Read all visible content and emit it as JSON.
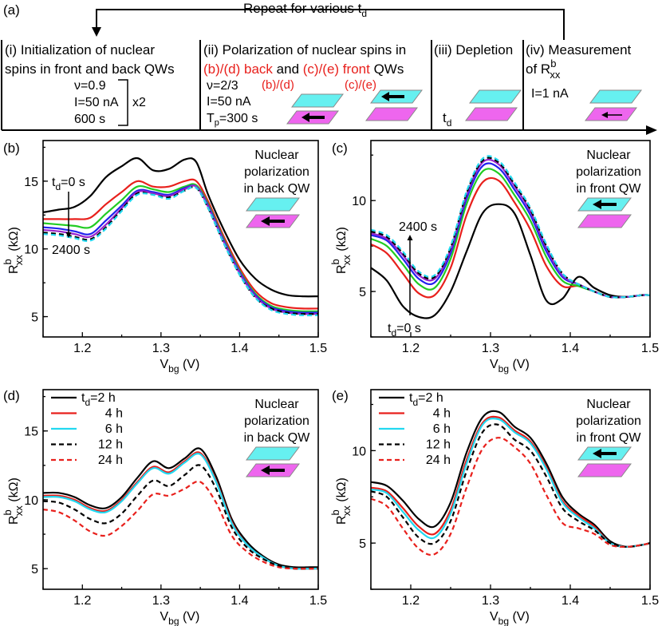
{
  "figure": {
    "panel_a": {
      "label": "(a)",
      "repeat_text": "Repeat for various t",
      "repeat_sub": "d",
      "step1_line1": "(i) Initialization of nuclear",
      "step1_line2": "spins in front and back QWs",
      "step1_nu": "ν=0.9",
      "step1_I": "I=50 nA",
      "step1_x2": "x2",
      "step1_time": "600 s",
      "step2_line1": "(ii) Polarization of nuclear spins in",
      "step2_bd": "(b)/(d) back",
      "step2_and": "and",
      "step2_ce": "(c)/(e) front",
      "step2_qws": "QWs",
      "step2_nu": "ν=2/3",
      "step2_I": "I=50 nA",
      "step2_Tp": "T",
      "step2_Tp_sub": "p",
      "step2_Tp_val": "=300 s",
      "step2_tag_bd": "(b)/(d)",
      "step2_tag_ce": "(c)/(e)",
      "step3_label": "(iii) Depletion",
      "step3_td": "t",
      "step3_td_sub": "d",
      "step4_line1": "(iv) Measurement",
      "step4_line2": "of R",
      "step4_sup": "b",
      "step4_sub": "xx",
      "step4_I": "I=1 nA"
    },
    "colors": {
      "cyan_layer": "#66f0f0",
      "magenta_layer": "#ee66ee",
      "red": "#e8201c",
      "green": "#22cc22",
      "blue": "#2222ee",
      "purple": "#9922cc",
      "cyan": "#22d8f0",
      "black": "#000000"
    }
  },
  "chart_data": [
    {
      "panel": "(b)",
      "type": "line",
      "xlabel": "V",
      "xlabel_sub": "bg",
      "xlabel_unit": " (V)",
      "ylabel": "R",
      "ylabel_sup": "b",
      "ylabel_sub": "xx",
      "ylabel_unit": " (kΩ)",
      "xlim": [
        1.15,
        1.5
      ],
      "ylim": [
        3.5,
        18.0
      ],
      "xticks": [
        "1.2",
        "1.3",
        "1.4",
        "1.5"
      ],
      "xtick_values": [
        1.2,
        1.3,
        1.4,
        1.5
      ],
      "yticks": [
        "5",
        "10",
        "15"
      ],
      "ytick_values": [
        5,
        10,
        15
      ],
      "annotation_line1": "Nuclear",
      "annotation_line2": "polarization",
      "annotation_line3": "in back QW",
      "label_top": "t",
      "label_top_sub": "d",
      "label_top_val": "=0 s",
      "label_bottom": "2400 s",
      "arrow_direction": "front-to-back (cyan top, magenta bottom with arrow)",
      "x": [
        1.15,
        1.17,
        1.19,
        1.21,
        1.23,
        1.25,
        1.27,
        1.29,
        1.31,
        1.33,
        1.345,
        1.36,
        1.38,
        1.4,
        1.42,
        1.44,
        1.46,
        1.48,
        1.5
      ],
      "series": [
        {
          "name": "0 s",
          "color": "#000000",
          "dash": false,
          "values": [
            12.7,
            12.9,
            13.1,
            13.9,
            15.3,
            16.1,
            16.7,
            15.8,
            15.9,
            16.6,
            16.4,
            14.0,
            11.4,
            9.2,
            7.8,
            7.0,
            6.6,
            6.5,
            6.5
          ]
        },
        {
          "name": "red",
          "color": "#e8201c",
          "dash": false,
          "values": [
            12.2,
            12.2,
            12.2,
            12.3,
            13.3,
            14.2,
            15.0,
            14.6,
            14.6,
            15.0,
            15.0,
            13.5,
            10.9,
            8.6,
            6.9,
            6.0,
            5.7,
            5.6,
            5.6
          ]
        },
        {
          "name": "green",
          "color": "#22cc22",
          "dash": false,
          "values": [
            11.9,
            11.8,
            11.7,
            11.6,
            12.6,
            13.6,
            14.6,
            14.4,
            14.2,
            14.6,
            14.7,
            13.3,
            10.7,
            8.4,
            6.7,
            5.8,
            5.5,
            5.4,
            5.4
          ]
        },
        {
          "name": "blue",
          "color": "#2222ee",
          "dash": false,
          "values": [
            11.6,
            11.5,
            11.3,
            11.1,
            12.1,
            13.2,
            14.3,
            14.2,
            14.0,
            14.5,
            14.6,
            13.2,
            10.6,
            8.3,
            6.6,
            5.7,
            5.4,
            5.3,
            5.3
          ]
        },
        {
          "name": "purple",
          "color": "#9922cc",
          "dash": false,
          "values": [
            11.4,
            11.3,
            11.1,
            10.9,
            11.8,
            13.0,
            14.2,
            14.1,
            13.9,
            14.4,
            14.6,
            13.1,
            10.5,
            8.2,
            6.5,
            5.6,
            5.3,
            5.2,
            5.2
          ]
        },
        {
          "name": "black-dash",
          "color": "#000000",
          "dash": true,
          "values": [
            11.2,
            11.1,
            10.9,
            10.7,
            11.6,
            12.9,
            14.1,
            14.0,
            13.8,
            14.3,
            14.5,
            13.0,
            10.4,
            8.1,
            6.4,
            5.6,
            5.3,
            5.2,
            5.2
          ]
        },
        {
          "name": "2400 s",
          "color": "#22d8f0",
          "dash": true,
          "values": [
            11.1,
            11.0,
            10.8,
            10.6,
            11.5,
            12.8,
            14.0,
            14.0,
            13.7,
            14.3,
            14.5,
            13.0,
            10.4,
            8.1,
            6.4,
            5.5,
            5.2,
            5.1,
            5.1
          ]
        }
      ]
    },
    {
      "panel": "(c)",
      "type": "line",
      "xlabel": "V",
      "xlabel_sub": "bg",
      "xlabel_unit": " (V)",
      "ylabel": "R",
      "ylabel_sup": "b",
      "ylabel_sub": "xx",
      "ylabel_unit": " (kΩ)",
      "xlim": [
        1.15,
        1.5
      ],
      "ylim": [
        2.5,
        13.3
      ],
      "xticks": [
        "1.2",
        "1.3",
        "1.4",
        "1.5"
      ],
      "xtick_values": [
        1.2,
        1.3,
        1.4,
        1.5
      ],
      "yticks": [
        "5",
        "10"
      ],
      "ytick_values": [
        5,
        10
      ],
      "annotation_line1": "Nuclear",
      "annotation_line2": "polarization",
      "annotation_line3": "in front QW",
      "label_top": "2400 s",
      "label_bottom": "t",
      "label_bottom_sub": "d",
      "label_bottom_val": "=0 s",
      "x": [
        1.15,
        1.17,
        1.19,
        1.21,
        1.23,
        1.25,
        1.27,
        1.29,
        1.31,
        1.33,
        1.35,
        1.37,
        1.39,
        1.41,
        1.43,
        1.45,
        1.47,
        1.49,
        1.5
      ],
      "series": [
        {
          "name": "0 s",
          "color": "#000000",
          "dash": false,
          "values": [
            6.3,
            5.6,
            4.2,
            3.6,
            3.7,
            5.0,
            7.2,
            9.3,
            9.8,
            9.3,
            7.0,
            4.5,
            4.6,
            5.8,
            5.2,
            4.8,
            4.7,
            4.8,
            4.8
          ]
        },
        {
          "name": "red",
          "color": "#e8201c",
          "dash": false,
          "values": [
            7.6,
            7.1,
            6.0,
            4.9,
            4.8,
            6.3,
            9.2,
            11.0,
            11.1,
            9.9,
            8.4,
            6.4,
            5.3,
            5.3,
            5.0,
            4.7,
            4.7,
            4.8,
            4.8
          ]
        },
        {
          "name": "green",
          "color": "#22cc22",
          "dash": false,
          "values": [
            7.9,
            7.5,
            6.5,
            5.4,
            5.2,
            6.8,
            9.8,
            11.6,
            11.5,
            10.3,
            8.9,
            6.9,
            5.6,
            5.3,
            5.0,
            4.7,
            4.7,
            4.8,
            4.8
          ]
        },
        {
          "name": "blue",
          "color": "#2222ee",
          "dash": false,
          "values": [
            8.1,
            7.8,
            6.8,
            5.7,
            5.5,
            7.1,
            10.1,
            11.9,
            11.8,
            10.6,
            9.2,
            7.2,
            5.8,
            5.4,
            5.0,
            4.7,
            4.7,
            4.8,
            4.8
          ]
        },
        {
          "name": "purple",
          "color": "#9922cc",
          "dash": false,
          "values": [
            8.2,
            7.9,
            7.0,
            5.9,
            5.7,
            7.3,
            10.3,
            12.1,
            12.0,
            10.8,
            9.4,
            7.4,
            5.9,
            5.4,
            5.0,
            4.7,
            4.7,
            4.8,
            4.8
          ]
        },
        {
          "name": "black-dash",
          "color": "#000000",
          "dash": true,
          "values": [
            8.3,
            8.0,
            7.1,
            6.0,
            5.8,
            7.4,
            10.4,
            12.2,
            12.1,
            10.9,
            9.5,
            7.5,
            6.0,
            5.4,
            5.0,
            4.7,
            4.7,
            4.8,
            4.8
          ]
        },
        {
          "name": "2400 s",
          "color": "#22d8f0",
          "dash": true,
          "values": [
            8.4,
            8.1,
            7.2,
            6.1,
            5.9,
            7.5,
            10.5,
            12.3,
            12.2,
            11.0,
            9.6,
            7.6,
            6.0,
            5.4,
            5.0,
            4.7,
            4.7,
            4.8,
            4.8
          ]
        }
      ]
    },
    {
      "panel": "(d)",
      "type": "line",
      "xlabel": "V",
      "xlabel_sub": "bg",
      "xlabel_unit": " (V)",
      "ylabel": "R",
      "ylabel_sup": "b",
      "ylabel_sub": "xx",
      "ylabel_unit": " (kΩ)",
      "xlim": [
        1.15,
        1.5
      ],
      "ylim": [
        3.5,
        18.0
      ],
      "xticks": [
        "1.2",
        "1.3",
        "1.4",
        "1.5"
      ],
      "xtick_values": [
        1.2,
        1.3,
        1.4,
        1.5
      ],
      "yticks": [
        "5",
        "10",
        "15"
      ],
      "ytick_values": [
        5,
        10,
        15
      ],
      "annotation_line1": "Nuclear",
      "annotation_line2": "polarization",
      "annotation_line3": "in back QW",
      "legend_title": "t",
      "legend_title_sub": "d",
      "legend": [
        "=2 h",
        "4 h",
        "6 h",
        "12 h",
        "24 h"
      ],
      "x": [
        1.15,
        1.17,
        1.19,
        1.21,
        1.23,
        1.25,
        1.27,
        1.29,
        1.31,
        1.33,
        1.35,
        1.37,
        1.39,
        1.41,
        1.43,
        1.45,
        1.47,
        1.49,
        1.5
      ],
      "series": [
        {
          "name": "2 h",
          "color": "#000000",
          "dash": false,
          "values": [
            10.5,
            10.5,
            10.2,
            9.6,
            9.4,
            10.2,
            11.6,
            12.8,
            12.3,
            13.0,
            13.7,
            11.7,
            8.6,
            6.9,
            5.9,
            5.3,
            5.1,
            5.1,
            5.1
          ]
        },
        {
          "name": "4 h",
          "color": "#e8201c",
          "dash": false,
          "values": [
            10.3,
            10.3,
            10.0,
            9.4,
            9.2,
            10.0,
            11.3,
            12.4,
            12.0,
            12.8,
            13.4,
            11.4,
            8.4,
            6.7,
            5.8,
            5.2,
            5.0,
            5.0,
            5.0
          ]
        },
        {
          "name": "6 h",
          "color": "#22d8f0",
          "dash": false,
          "values": [
            10.2,
            10.2,
            9.9,
            9.3,
            9.1,
            9.9,
            11.2,
            12.3,
            11.9,
            12.7,
            13.3,
            11.3,
            8.3,
            6.7,
            5.8,
            5.2,
            5.0,
            5.0,
            5.0
          ]
        },
        {
          "name": "12 h",
          "color": "#000000",
          "dash": true,
          "values": [
            9.9,
            9.8,
            9.3,
            8.6,
            8.3,
            9.0,
            10.3,
            11.4,
            11.0,
            11.8,
            12.5,
            10.8,
            8.0,
            6.5,
            5.7,
            5.2,
            5.0,
            5.0,
            5.0
          ]
        },
        {
          "name": "24 h",
          "color": "#e8201c",
          "dash": true,
          "values": [
            9.3,
            9.1,
            8.5,
            7.7,
            7.4,
            8.1,
            9.2,
            10.4,
            10.3,
            10.8,
            11.3,
            9.8,
            7.4,
            6.2,
            5.5,
            5.1,
            5.0,
            5.0,
            5.0
          ]
        }
      ]
    },
    {
      "panel": "(e)",
      "type": "line",
      "xlabel": "V",
      "xlabel_sub": "bg",
      "xlabel_unit": " (V)",
      "ylabel": "R",
      "ylabel_sup": "b",
      "ylabel_sub": "xx",
      "ylabel_unit": " (kΩ)",
      "xlim": [
        1.15,
        1.5
      ],
      "ylim": [
        2.5,
        13.3
      ],
      "xticks": [
        "1.2",
        "1.3",
        "1.4",
        "1.5"
      ],
      "xtick_values": [
        1.2,
        1.3,
        1.4,
        1.5
      ],
      "yticks": [
        "5",
        "10"
      ],
      "ytick_values": [
        5,
        10
      ],
      "annotation_line1": "Nuclear",
      "annotation_line2": "polarization",
      "annotation_line3": "in front QW",
      "legend_title": "t",
      "legend_title_sub": "d",
      "legend": [
        "=2 h",
        "4 h",
        "6 h",
        "12 h",
        "24 h"
      ],
      "x": [
        1.15,
        1.17,
        1.19,
        1.21,
        1.23,
        1.25,
        1.27,
        1.29,
        1.31,
        1.33,
        1.35,
        1.37,
        1.39,
        1.41,
        1.43,
        1.45,
        1.47,
        1.49,
        1.5
      ],
      "series": [
        {
          "name": "2 h",
          "color": "#000000",
          "dash": false,
          "values": [
            8.3,
            8.1,
            7.3,
            6.3,
            5.9,
            7.2,
            9.9,
            11.8,
            12.1,
            11.3,
            10.7,
            9.3,
            7.5,
            6.6,
            6.0,
            5.1,
            4.8,
            4.9,
            5.0
          ]
        },
        {
          "name": "4 h",
          "color": "#e8201c",
          "dash": false,
          "values": [
            8.0,
            7.8,
            6.9,
            5.9,
            5.5,
            6.8,
            9.5,
            11.5,
            11.8,
            11.1,
            10.5,
            9.1,
            7.3,
            6.5,
            5.9,
            5.0,
            4.8,
            4.9,
            5.0
          ]
        },
        {
          "name": "6 h",
          "color": "#22d8f0",
          "dash": false,
          "values": [
            7.9,
            7.7,
            6.7,
            5.7,
            5.3,
            6.6,
            9.3,
            11.4,
            11.7,
            11.0,
            10.4,
            9.0,
            7.2,
            6.4,
            5.8,
            5.0,
            4.8,
            4.9,
            5.0
          ]
        },
        {
          "name": "12 h",
          "color": "#000000",
          "dash": true,
          "values": [
            7.8,
            7.5,
            6.4,
            5.3,
            5.0,
            6.2,
            8.9,
            11.0,
            11.4,
            10.6,
            10.0,
            8.6,
            6.9,
            6.2,
            5.7,
            5.0,
            4.8,
            4.9,
            5.0
          ]
        },
        {
          "name": "24 h",
          "color": "#e8201c",
          "dash": true,
          "values": [
            7.4,
            7.0,
            5.8,
            4.7,
            4.4,
            5.5,
            8.0,
            10.1,
            10.7,
            10.2,
            9.3,
            7.6,
            6.1,
            5.8,
            5.5,
            4.9,
            4.8,
            4.9,
            5.0
          ]
        }
      ]
    }
  ]
}
